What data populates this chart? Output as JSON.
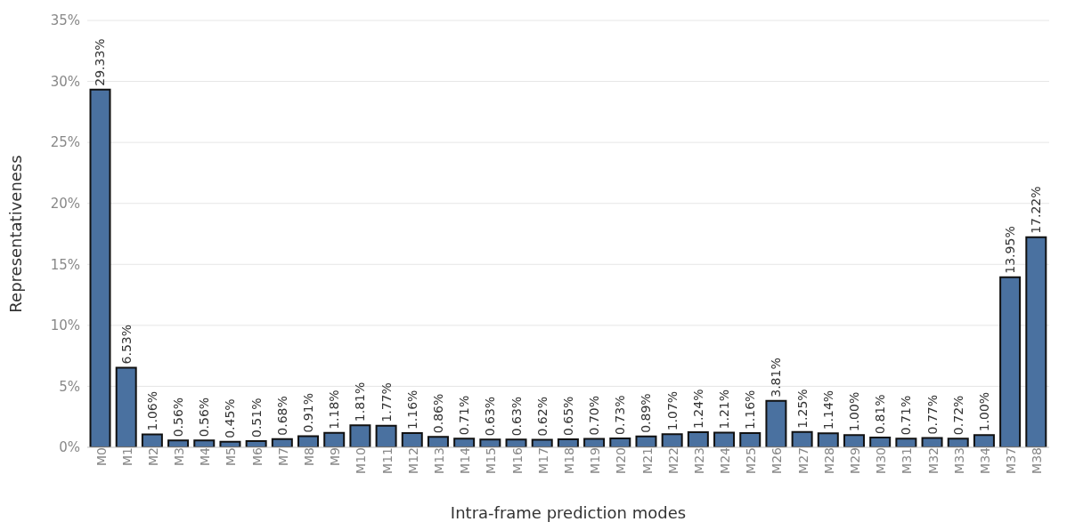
{
  "chart_data": {
    "type": "bar",
    "xlabel": "Intra-frame prediction modes",
    "ylabel": "Representativeness",
    "categories": [
      "M0",
      "M1",
      "M2",
      "M3",
      "M4",
      "M5",
      "M6",
      "M7",
      "M8",
      "M9",
      "M10",
      "M11",
      "M12",
      "M13",
      "M14",
      "M15",
      "M16",
      "M17",
      "M18",
      "M19",
      "M20",
      "M21",
      "M22",
      "M23",
      "M24",
      "M25",
      "M26",
      "M27",
      "M28",
      "M29",
      "M30",
      "M31",
      "M32",
      "M33",
      "M34",
      "M37",
      "M38"
    ],
    "values": [
      29.33,
      6.53,
      1.06,
      0.56,
      0.56,
      0.45,
      0.51,
      0.68,
      0.91,
      1.18,
      1.81,
      1.77,
      1.16,
      0.86,
      0.71,
      0.63,
      0.63,
      0.62,
      0.65,
      0.7,
      0.73,
      0.89,
      1.07,
      1.24,
      1.21,
      1.16,
      3.81,
      1.25,
      1.14,
      1.0,
      0.81,
      0.71,
      0.77,
      0.72,
      1.0,
      13.95,
      17.22
    ],
    "value_labels": [
      "29.33%",
      "6.53%",
      "1.06%",
      "0.56%",
      "0.56%",
      "0.45%",
      "0.51%",
      "0.68%",
      "0.91%",
      "1.18%",
      "1.81%",
      "1.77%",
      "1.16%",
      "0.86%",
      "0.71%",
      "0.63%",
      "0.63%",
      "0.62%",
      "0.65%",
      "0.70%",
      "0.73%",
      "0.89%",
      "1.07%",
      "1.24%",
      "1.21%",
      "1.16%",
      "3.81%",
      "1.25%",
      "1.14%",
      "1.00%",
      "0.81%",
      "0.71%",
      "0.77%",
      "0.72%",
      "1.00%",
      "13.95%",
      "17.22%"
    ],
    "color": "#4a71a0",
    "ylim": [
      0,
      35
    ],
    "yticks": [
      {
        "value": 0,
        "label": "0%"
      },
      {
        "value": 5,
        "label": "5%"
      },
      {
        "value": 10,
        "label": "10%"
      },
      {
        "value": 15,
        "label": "15%"
      },
      {
        "value": 20,
        "label": "20%"
      },
      {
        "value": 25,
        "label": "25%"
      },
      {
        "value": 30,
        "label": "30%"
      },
      {
        "value": 35,
        "label": "35%"
      }
    ],
    "grid": "y"
  }
}
